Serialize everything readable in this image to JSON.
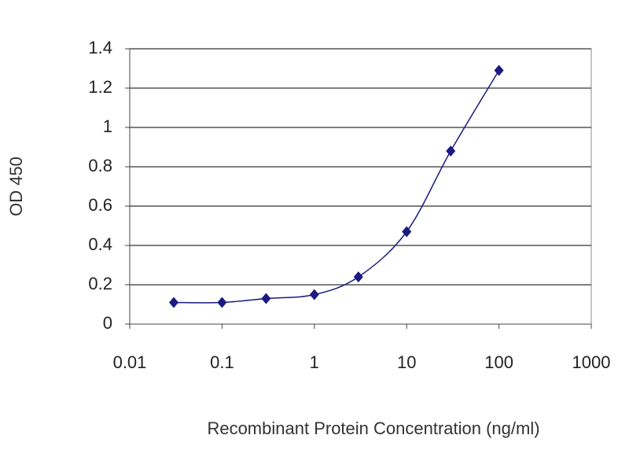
{
  "chart_data": {
    "type": "scatter-line",
    "x_label": "Recombinant Protein Concentration (ng/ml)",
    "y_label": "OD 450",
    "log_x": true,
    "grid": true,
    "series": [
      {
        "x": [
          0.03,
          0.1,
          0.3,
          1,
          3,
          10,
          30,
          100
        ],
        "values": [
          0.11,
          0.11,
          0.13,
          0.15,
          0.24,
          0.47,
          0.88,
          1.29
        ],
        "color": "#1a1a80"
      }
    ],
    "xlim": [
      0.01,
      1000
    ],
    "xticks": [
      0.01,
      0.1,
      1,
      10,
      100,
      1000
    ],
    "ylim": [
      0,
      1.4
    ],
    "yticks": [
      0,
      0.2,
      0.4,
      0.6,
      0.8,
      1,
      1.2,
      1.4
    ]
  }
}
